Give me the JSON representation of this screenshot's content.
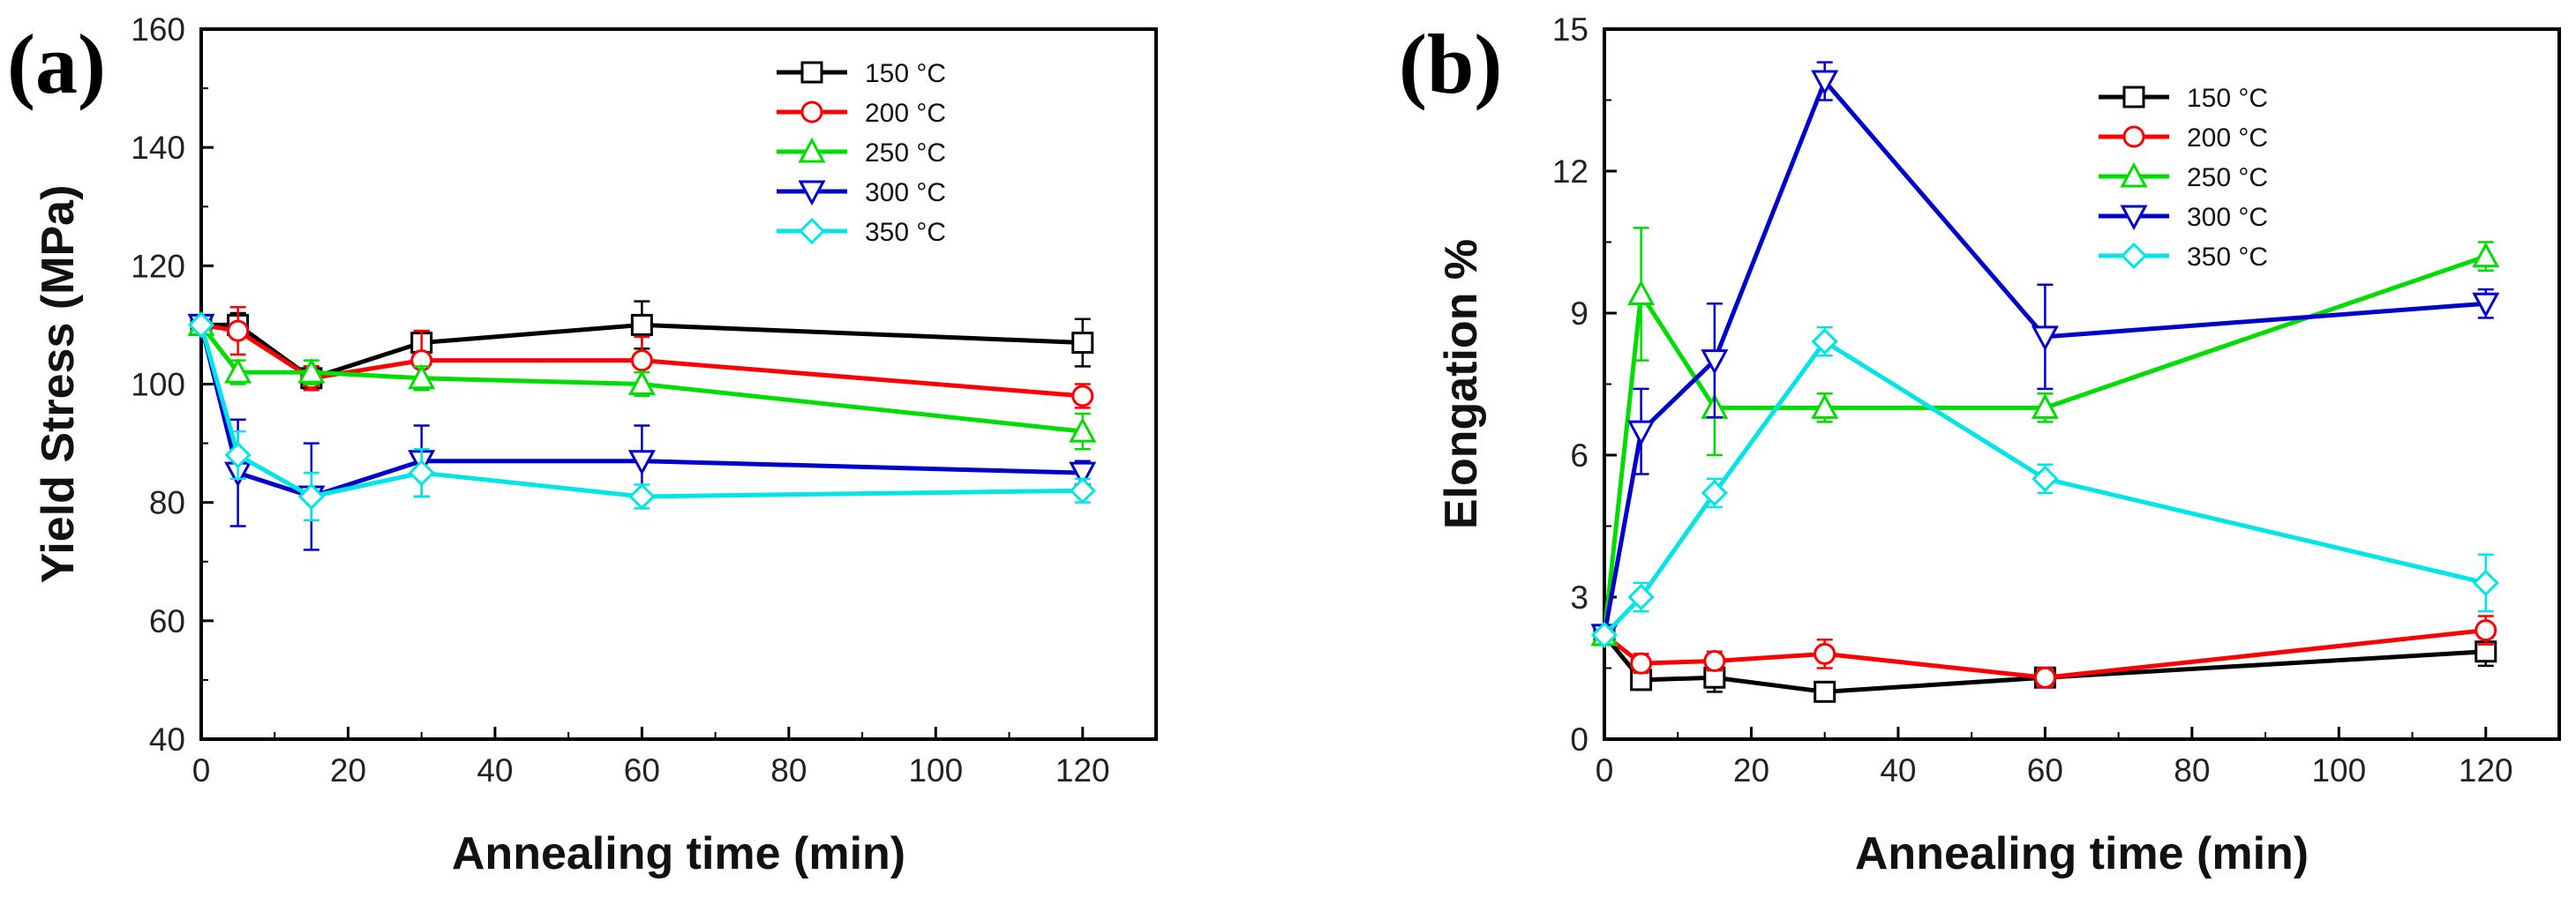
{
  "chart_data": [
    {
      "id": "a",
      "type": "line",
      "panel_label": "(a)",
      "title": "",
      "xlabel": "Annealing time (min)",
      "ylabel": "Yield Stress (MPa)",
      "xlim": [
        0,
        130
      ],
      "ylim": [
        40,
        160
      ],
      "xticks": [
        0,
        20,
        40,
        60,
        80,
        100,
        120
      ],
      "yticks": [
        40,
        60,
        80,
        100,
        120,
        140,
        160
      ],
      "legend_position": "top-right",
      "x": [
        0,
        5,
        15,
        30,
        60,
        120
      ],
      "series": [
        {
          "name": "150 °C",
          "color": "#000000",
          "marker": "square",
          "values": [
            110,
            110,
            101,
            107,
            110,
            107
          ],
          "errors": [
            0,
            2,
            2,
            2,
            4,
            4
          ]
        },
        {
          "name": "200 °C",
          "color": "#ff0000",
          "marker": "circle",
          "values": [
            110,
            109,
            101,
            104,
            104,
            98
          ],
          "errors": [
            0,
            4,
            2,
            5,
            4,
            2
          ]
        },
        {
          "name": "250 °C",
          "color": "#00dd00",
          "marker": "triangle-up",
          "values": [
            110,
            102,
            102,
            101,
            100,
            92
          ],
          "errors": [
            0,
            2,
            2,
            2,
            2,
            3
          ]
        },
        {
          "name": "300 °C",
          "color": "#0000cc",
          "marker": "triangle-down",
          "values": [
            110,
            85,
            81,
            87,
            87,
            85
          ],
          "errors": [
            0,
            9,
            9,
            6,
            6,
            2
          ]
        },
        {
          "name": "350 °C",
          "color": "#00e5e5",
          "marker": "diamond",
          "values": [
            110,
            88,
            81,
            85,
            81,
            82
          ],
          "errors": [
            0,
            4,
            4,
            4,
            2,
            2
          ]
        }
      ]
    },
    {
      "id": "b",
      "type": "line",
      "panel_label": "(b)",
      "title": "",
      "xlabel": "Annealing time (min)",
      "ylabel": "Elongation %",
      "xlim": [
        0,
        130
      ],
      "ylim": [
        0,
        15
      ],
      "xticks": [
        0,
        20,
        40,
        60,
        80,
        100,
        120
      ],
      "yticks": [
        0,
        3,
        6,
        9,
        12,
        15
      ],
      "legend_position": "top-right",
      "x": [
        0,
        5,
        15,
        30,
        60,
        120
      ],
      "series": [
        {
          "name": "150 °C",
          "color": "#000000",
          "marker": "square",
          "values": [
            2.2,
            1.25,
            1.3,
            1.0,
            1.3,
            1.85
          ],
          "errors": [
            0,
            0.2,
            0.3,
            0.2,
            0.2,
            0.3
          ]
        },
        {
          "name": "200 °C",
          "color": "#ff0000",
          "marker": "circle",
          "values": [
            2.2,
            1.6,
            1.65,
            1.8,
            1.3,
            2.3
          ],
          "errors": [
            0,
            0.2,
            0.2,
            0.3,
            0.2,
            0.3
          ]
        },
        {
          "name": "250 °C",
          "color": "#00dd00",
          "marker": "triangle-up",
          "values": [
            2.2,
            9.4,
            7.0,
            7.0,
            7.0,
            10.2
          ],
          "errors": [
            0,
            1.4,
            1.0,
            0.3,
            0.3,
            0.3
          ]
        },
        {
          "name": "300 °C",
          "color": "#0000cc",
          "marker": "triangle-down",
          "values": [
            2.2,
            6.5,
            8.0,
            13.9,
            8.5,
            9.2
          ],
          "errors": [
            0,
            0.9,
            1.2,
            0.4,
            1.1,
            0.3
          ]
        },
        {
          "name": "350 °C",
          "color": "#00e5e5",
          "marker": "diamond",
          "values": [
            2.2,
            3.0,
            5.2,
            8.4,
            5.5,
            3.3
          ],
          "errors": [
            0,
            0.3,
            0.3,
            0.3,
            0.3,
            0.6
          ]
        }
      ]
    }
  ]
}
